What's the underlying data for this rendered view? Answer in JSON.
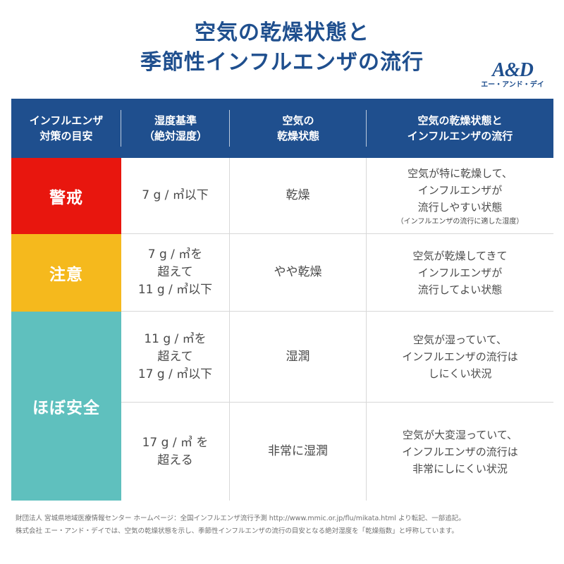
{
  "title": {
    "line1": "空気の乾燥状態と",
    "line2": "季節性インフルエンザの流行"
  },
  "logo": {
    "mark": "A&D",
    "sub": "エー・アンド・デイ"
  },
  "table": {
    "headers": [
      [
        "インフルエンザ",
        "対策の目安"
      ],
      [
        "湿度基準",
        "（絶対湿度）"
      ],
      [
        "空気の",
        "乾燥状態"
      ],
      [
        "空気の乾燥状態と",
        "インフルエンザの流行"
      ]
    ],
    "levels": {
      "warning": "警戒",
      "caution": "注意",
      "safe": "ほぼ安全"
    },
    "rows": [
      {
        "humidity": [
          "7 g / ㎥以下"
        ],
        "state": "乾燥",
        "description": [
          "空気が特に乾燥して、",
          "インフルエンザが",
          "流行しやすい状態"
        ],
        "note": "（インフルエンザの流行に適した湿度）"
      },
      {
        "humidity": [
          "7 g / ㎥を",
          "超えて",
          "11 g / ㎥以下"
        ],
        "state": "やや乾燥",
        "description": [
          "空気が乾燥してきて",
          "インフルエンザが",
          "流行してよい状態"
        ]
      },
      {
        "humidity": [
          "11 g / ㎥を",
          "超えて",
          "17 g / ㎥以下"
        ],
        "state": "湿潤",
        "description": [
          "空気が湿っていて、",
          "インフルエンザの流行は",
          "しにくい状況"
        ]
      },
      {
        "humidity": [
          "17 g / ㎥ を",
          "超える"
        ],
        "state": "非常に湿潤",
        "description": [
          "空気が大変湿っていて、",
          "インフルエンザの流行は",
          "非常にしにくい状況"
        ]
      }
    ]
  },
  "colors": {
    "header": "#1f4f8e",
    "warning": "#e8160e",
    "caution": "#f5b91d",
    "safe": "#5fc0be"
  },
  "footer": {
    "line1": "財団法人 宮城県地域医療情報センター ホームページ：全国インフルエンザ流行予測 http://www.mmic.or.jp/flu/mikata.html より転記、一部追記。",
    "line2": "株式会社 エー・アンド・デイでは、空気の乾燥状態を示し、季節性インフルエンザの流行の目安となる絶対湿度を「乾燥指数」と呼称しています。"
  }
}
